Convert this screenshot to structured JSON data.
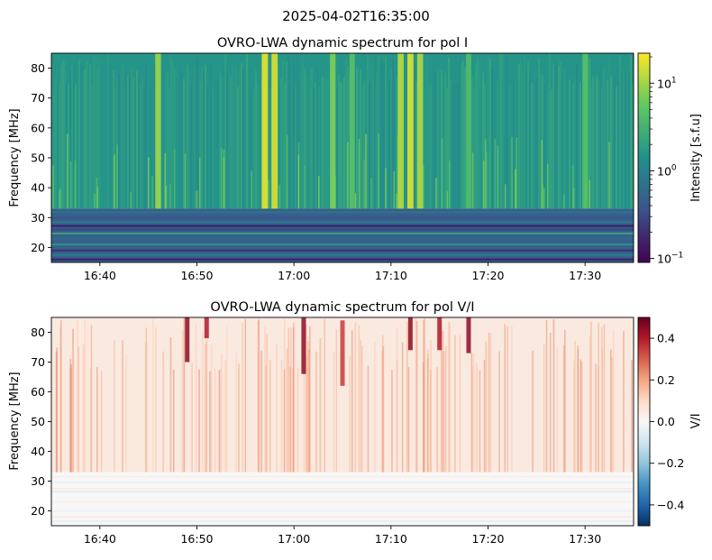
{
  "figure": {
    "suptitle": "2025-04-02T16:35:00"
  },
  "chart_data": [
    {
      "type": "heatmap",
      "title": "OVRO-LWA dynamic spectrum for pol I",
      "ylabel": "Frequency [MHz]",
      "xlabel": "",
      "xlim": [
        "16:35",
        "17:35"
      ],
      "ylim": [
        15,
        85
      ],
      "x_ticks": [
        "16:40",
        "16:50",
        "17:00",
        "17:10",
        "17:20",
        "17:30"
      ],
      "y_ticks": [
        20,
        30,
        40,
        50,
        60,
        70,
        80
      ],
      "colormap": "viridis",
      "colorbar": {
        "label": "Intensity [s.f.u]",
        "scale": "log",
        "range": [
          0.09,
          22
        ],
        "ticks": [
          {
            "base": "10",
            "exp": "1"
          },
          {
            "base": "10",
            "exp": "0"
          },
          {
            "base": "10",
            "exp": "−1"
          }
        ]
      },
      "features": {
        "lower_band_MHz": [
          15,
          33
        ],
        "bright_bursts": [
          {
            "time": "16:46",
            "level": 0.85
          },
          {
            "time": "16:57",
            "level": 0.97
          },
          {
            "time": "16:58",
            "level": 0.95
          },
          {
            "time": "17:04",
            "level": 0.8
          },
          {
            "time": "17:06",
            "level": 0.72
          },
          {
            "time": "17:11",
            "level": 0.9
          },
          {
            "time": "17:12",
            "level": 0.95
          },
          {
            "time": "17:13",
            "level": 0.88
          },
          {
            "time": "17:18",
            "level": 0.7
          },
          {
            "time": "17:30",
            "level": 0.72
          }
        ]
      }
    },
    {
      "type": "heatmap",
      "title": "OVRO-LWA dynamic spectrum for pol V/I",
      "ylabel": "Frequency [MHz]",
      "xlabel": "",
      "xlim": [
        "16:35",
        "17:35"
      ],
      "ylim": [
        15,
        85
      ],
      "x_ticks": [
        "16:40",
        "16:50",
        "17:00",
        "17:10",
        "17:20",
        "17:30"
      ],
      "y_ticks": [
        20,
        30,
        40,
        50,
        60,
        70,
        80
      ],
      "colormap": "RdBu_r",
      "colorbar": {
        "label": "V/I",
        "range": [
          -0.5,
          0.5
        ],
        "ticks": [
          "0.4",
          "0.2",
          "0.0",
          "−0.2",
          "−0.4"
        ],
        "tick_values": [
          0.4,
          0.2,
          0.0,
          -0.2,
          -0.4
        ]
      },
      "features": {
        "lower_band_MHz": [
          15,
          33
        ],
        "strong_patches": [
          {
            "time": "16:49",
            "fmin": 70,
            "fmax": 85,
            "level": 0.45
          },
          {
            "time": "16:51",
            "fmin": 78,
            "fmax": 85,
            "level": 0.4
          },
          {
            "time": "17:01",
            "fmin": 66,
            "fmax": 85,
            "level": 0.45
          },
          {
            "time": "17:05",
            "fmin": 62,
            "fmax": 84,
            "level": 0.35
          },
          {
            "time": "17:12",
            "fmin": 74,
            "fmax": 85,
            "level": 0.45
          },
          {
            "time": "17:15",
            "fmin": 74,
            "fmax": 85,
            "level": 0.4
          },
          {
            "time": "17:18",
            "fmin": 73,
            "fmax": 85,
            "level": 0.45
          }
        ]
      }
    }
  ]
}
